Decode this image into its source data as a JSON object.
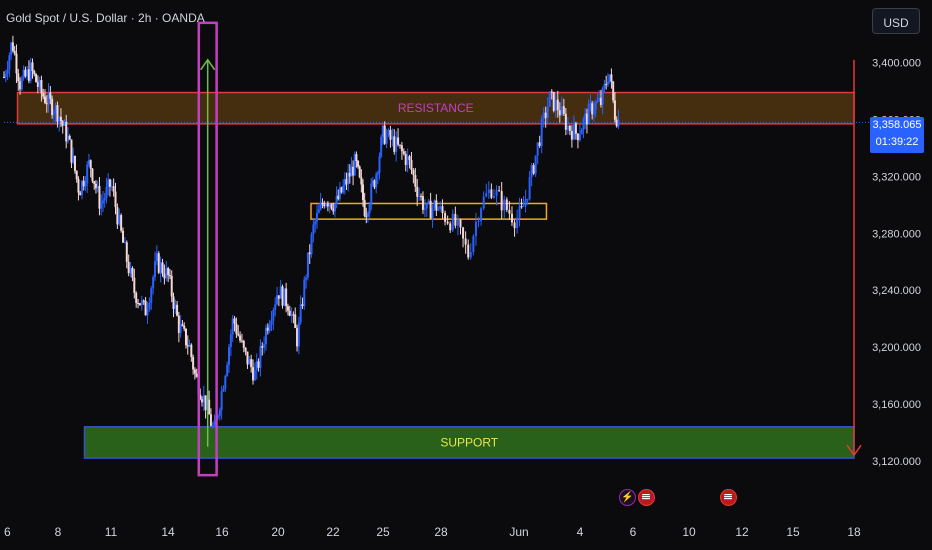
{
  "header": {
    "title": "Gold Spot / U.S. Dollar · 2h · OANDA"
  },
  "currency_button": {
    "label": "USD"
  },
  "price_label": {
    "price": "3,358.065",
    "countdown": "01:39:22"
  },
  "colors": {
    "background": "#0b0b0d",
    "bull_candle": "#2962ff",
    "bear_candle": "#f4d8d8",
    "resistance_border": "#e53935",
    "resistance_fill": "#5a3a10",
    "support_border": "#2f56c8",
    "support_fill": "#2e6a1c",
    "consolidation_border": "#f5a623",
    "vertical_marker": "#c040c0",
    "up_arrow": "#6cc04a",
    "down_arrow": "#e53935",
    "price_axis_label": "#2962ff",
    "annotation_text_resistance": "#c040c0",
    "annotation_text_support": "#e6e64a"
  },
  "events": [
    {
      "icon": "lightning-icon",
      "label": ""
    },
    {
      "icon": "us-flag-icon",
      "label": ""
    },
    {
      "icon": "us-flag-icon",
      "label": ""
    }
  ],
  "chart_data": {
    "type": "candlestick",
    "title": "Gold Spot / U.S. Dollar · 2h · OANDA",
    "y_axis": {
      "ticks": [
        "3,400.000",
        "3,360.000",
        "3,320.000",
        "3,280.000",
        "3,240.000",
        "3,200.000",
        "3,160.000",
        "3,120.000"
      ],
      "tick_values": [
        3400,
        3360,
        3320,
        3280,
        3240,
        3200,
        3160,
        3120
      ],
      "range": [
        3108,
        3430
      ]
    },
    "x_axis": {
      "ticks": [
        "6",
        "8",
        "11",
        "14",
        "16",
        "20",
        "22",
        "25",
        "28",
        "Jun",
        "4",
        "6",
        "10",
        "12",
        "15",
        "18"
      ],
      "range_index": [
        0,
        15
      ]
    },
    "close_path": [
      [
        0.0,
        3390
      ],
      [
        0.15,
        3415
      ],
      [
        0.3,
        3385
      ],
      [
        0.5,
        3395
      ],
      [
        0.7,
        3378
      ],
      [
        1.0,
        3365
      ],
      [
        1.2,
        3345
      ],
      [
        1.4,
        3310
      ],
      [
        1.6,
        3330
      ],
      [
        1.8,
        3300
      ],
      [
        2.0,
        3315
      ],
      [
        2.2,
        3275
      ],
      [
        2.4,
        3240
      ],
      [
        2.6,
        3225
      ],
      [
        2.8,
        3260
      ],
      [
        3.0,
        3250
      ],
      [
        3.2,
        3215
      ],
      [
        3.4,
        3200
      ],
      [
        3.5,
        3180
      ],
      [
        3.7,
        3160
      ],
      [
        3.85,
        3140
      ],
      [
        4.0,
        3170
      ],
      [
        4.2,
        3220
      ],
      [
        4.4,
        3195
      ],
      [
        4.6,
        3180
      ],
      [
        4.8,
        3215
      ],
      [
        5.0,
        3240
      ],
      [
        5.2,
        3230
      ],
      [
        5.35,
        3205
      ],
      [
        5.5,
        3250
      ],
      [
        5.65,
        3285
      ],
      [
        5.85,
        3305
      ],
      [
        6.05,
        3300
      ],
      [
        6.25,
        3315
      ],
      [
        6.45,
        3330
      ],
      [
        6.65,
        3295
      ],
      [
        6.85,
        3320
      ],
      [
        7.0,
        3350
      ],
      [
        7.15,
        3345
      ],
      [
        7.3,
        3338
      ],
      [
        7.45,
        3330
      ],
      [
        7.6,
        3310
      ],
      [
        7.75,
        3295
      ],
      [
        7.9,
        3300
      ],
      [
        8.05,
        3292
      ],
      [
        8.2,
        3285
      ],
      [
        8.35,
        3265
      ],
      [
        8.5,
        3300
      ],
      [
        8.65,
        3312
      ],
      [
        8.8,
        3300
      ],
      [
        8.95,
        3290
      ],
      [
        9.05,
        3295
      ],
      [
        9.2,
        3320
      ],
      [
        9.35,
        3350
      ],
      [
        9.5,
        3375
      ],
      [
        9.65,
        3368
      ],
      [
        9.8,
        3355
      ],
      [
        9.95,
        3350
      ],
      [
        10.1,
        3360
      ],
      [
        10.25,
        3370
      ],
      [
        10.4,
        3372
      ],
      [
        10.55,
        3395
      ],
      [
        10.65,
        3365
      ],
      [
        10.75,
        3358
      ]
    ],
    "zones": [
      {
        "name": "resistance",
        "label": "RESISTANCE",
        "y_from": 3357,
        "y_to": 3379,
        "x_from": 0.25,
        "x_to": 15.95
      },
      {
        "name": "support",
        "label": "SUPPORT",
        "y_from": 3122,
        "y_to": 3144,
        "x_from": 1.5,
        "x_to": 15.95
      },
      {
        "name": "consolidation",
        "label": "",
        "y_from": 3290,
        "y_to": 3301,
        "x_from": 5.6,
        "x_to": 9.45
      }
    ],
    "markers": [
      {
        "name": "rally-column",
        "x_from": 3.57,
        "x_to": 3.9,
        "direction": "up",
        "y_from": 3130,
        "y_to": 3402
      },
      {
        "name": "projection-column",
        "x_from": 15.2,
        "x_to": 15.55,
        "direction": "down",
        "y_from": 3402,
        "y_to": 3124
      }
    ],
    "last_price": 3358.065,
    "grid": false,
    "legend": "none"
  }
}
